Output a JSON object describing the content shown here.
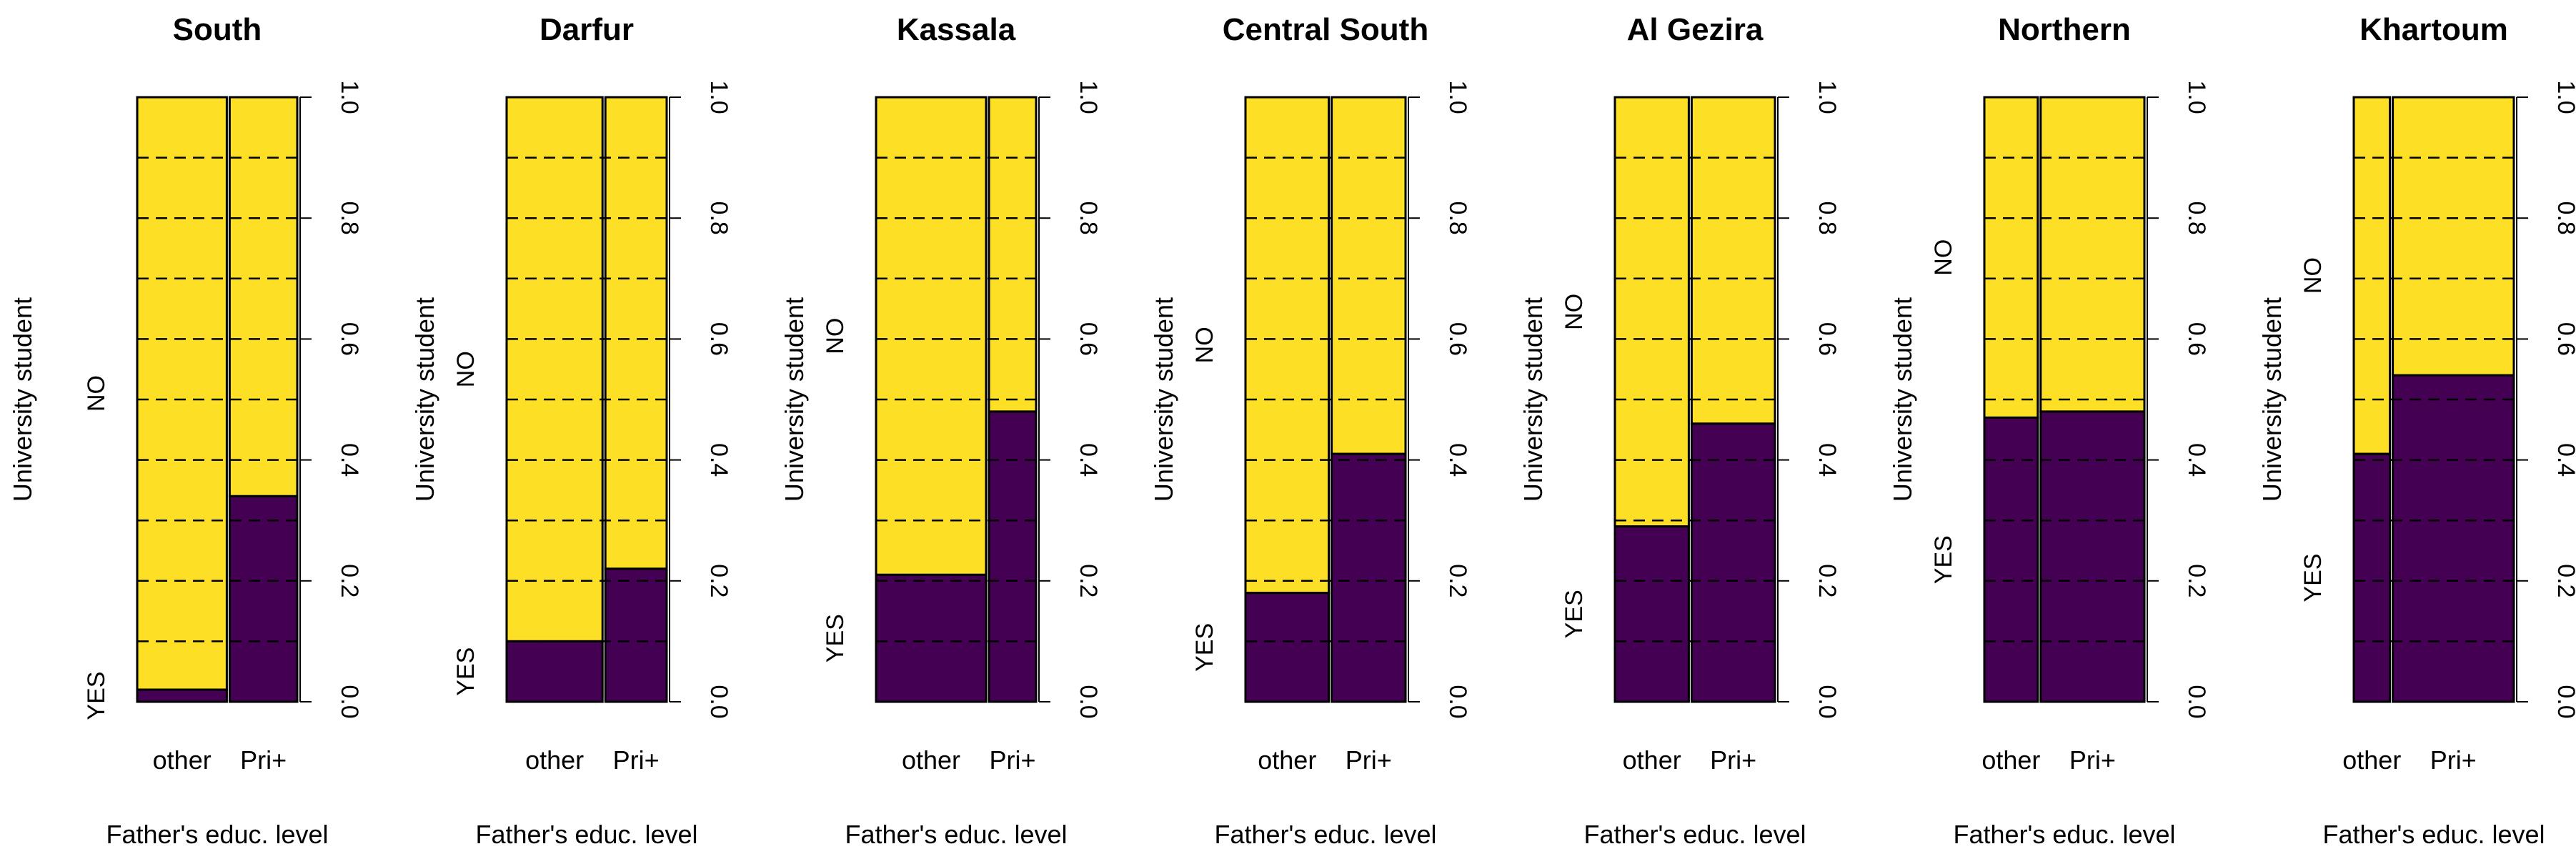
{
  "chart_data": {
    "type": "spineplot",
    "xlabel": "Father's educ. level",
    "ylabel": "University student",
    "x_categories": [
      "other",
      "Pri+"
    ],
    "y_categories": [
      "YES",
      "NO"
    ],
    "right_axis_ticks": [
      "0.0",
      "0.2",
      "0.4",
      "0.6",
      "0.8",
      "1.0"
    ],
    "right_axis_range": [
      0,
      1
    ],
    "gridlines": [
      0.1,
      0.2,
      0.3,
      0.4,
      0.5,
      0.6,
      0.7,
      0.8,
      0.9
    ],
    "colors": {
      "YES": "#440154",
      "NO": "#fde025"
    },
    "panels": [
      {
        "title": "South",
        "other_share": 0.57,
        "yes_other": 0.02,
        "yes_pri": 0.34
      },
      {
        "title": "Darfur",
        "other_share": 0.61,
        "yes_other": 0.1,
        "yes_pri": 0.22
      },
      {
        "title": "Kassala",
        "other_share": 0.7,
        "yes_other": 0.21,
        "yes_pri": 0.48
      },
      {
        "title": "Central  South",
        "other_share": 0.53,
        "yes_other": 0.18,
        "yes_pri": 0.41
      },
      {
        "title": "Al Gezira",
        "other_share": 0.47,
        "yes_other": 0.29,
        "yes_pri": 0.46
      },
      {
        "title": "Northern",
        "other_share": 0.34,
        "yes_other": 0.47,
        "yes_pri": 0.48
      },
      {
        "title": "Khartoum",
        "other_share": 0.23,
        "yes_other": 0.41,
        "yes_pri": 0.54
      }
    ]
  }
}
